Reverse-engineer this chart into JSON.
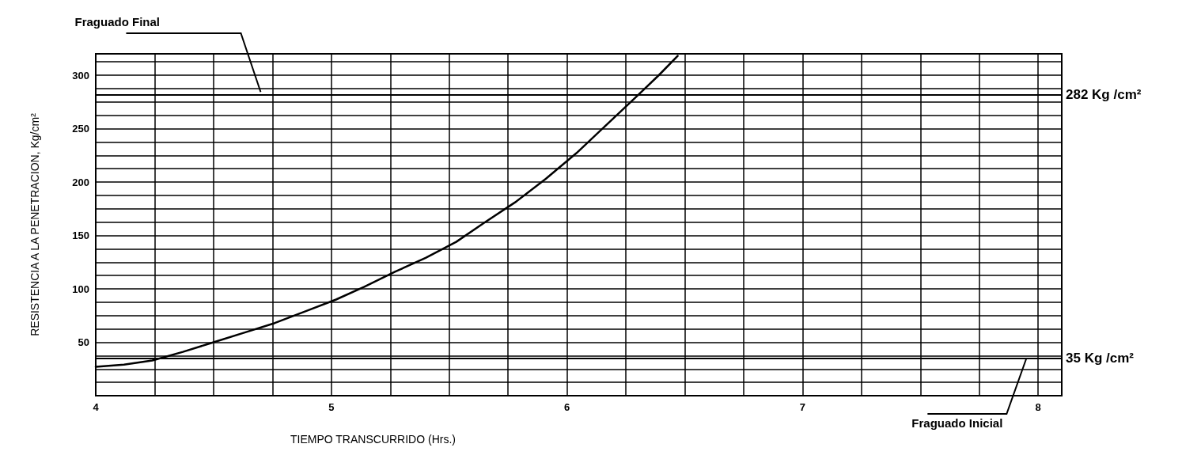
{
  "chart_data": {
    "type": "line",
    "xlabel": "TIEMPO TRANSCURRIDO (Hrs.)",
    "ylabel": "RESISTENCIA A LA PENETRACION, Kg/cm²",
    "series": [
      {
        "color": "#000000",
        "x": [
          4.0,
          4.12,
          4.24,
          4.37,
          4.5,
          4.63,
          4.76,
          4.89,
          5.02,
          5.14,
          5.27,
          5.4,
          5.53,
          5.65,
          5.78,
          5.91,
          6.04,
          6.17,
          6.3,
          6.39,
          6.47
        ],
        "values": [
          27,
          29,
          33,
          41,
          50,
          59,
          68,
          79,
          90,
          102,
          116,
          129,
          144,
          162,
          181,
          203,
          227,
          254,
          281,
          300,
          318
        ]
      }
    ],
    "xlim": [
      4,
      8.1
    ],
    "ylim": [
      0,
      320
    ],
    "xticks": [
      4,
      {
        "value": 4.25,
        "label": null
      },
      {
        "value": 4.5,
        "label": null
      },
      {
        "value": 4.75,
        "label": null
      },
      5,
      {
        "value": 5.25,
        "label": null
      },
      {
        "value": 5.5,
        "label": null
      },
      {
        "value": 5.75,
        "label": null
      },
      6,
      {
        "value": 6.25,
        "label": null
      },
      {
        "value": 6.5,
        "label": null
      },
      {
        "value": 6.75,
        "label": null
      },
      7,
      {
        "value": 7.25,
        "label": null
      },
      {
        "value": 7.5,
        "label": null
      },
      {
        "value": 7.75,
        "label": null
      },
      8
    ],
    "yticks": [
      {
        "value": 0,
        "label": null
      },
      {
        "value": 12.5,
        "label": null
      },
      {
        "value": 25,
        "label": null
      },
      {
        "value": 37.5,
        "label": null
      },
      50,
      {
        "value": 62.5,
        "label": null
      },
      {
        "value": 75,
        "label": null
      },
      {
        "value": 87.5,
        "label": null
      },
      100,
      {
        "value": 112.5,
        "label": null
      },
      {
        "value": 125,
        "label": null
      },
      {
        "value": 137.5,
        "label": null
      },
      150,
      {
        "value": 162.5,
        "label": null
      },
      {
        "value": 175,
        "label": null
      },
      {
        "value": 187.5,
        "label": null
      },
      200,
      {
        "value": 212.5,
        "label": null
      },
      {
        "value": 225,
        "label": null
      },
      {
        "value": 237.5,
        "label": null
      },
      250,
      {
        "value": 262.5,
        "label": null
      },
      {
        "value": 275,
        "label": null
      },
      {
        "value": 287.5,
        "label": null
      },
      300,
      {
        "value": 312.5,
        "label": null
      }
    ],
    "grid": true,
    "marker": "none",
    "line_style": "solid",
    "ref_lines": [
      {
        "axis": "y",
        "value": 282,
        "label": "282 Kg /cm²",
        "color": "#000000"
      },
      {
        "axis": "y",
        "value": 35,
        "label": "35 Kg /cm²",
        "color": "#000000"
      }
    ],
    "annotations": [
      {
        "text": "Fraguado Final",
        "x": 4.7,
        "y": 282
      },
      {
        "text": "Fraguado Inicial",
        "x": 7.95,
        "y": 35
      }
    ]
  }
}
